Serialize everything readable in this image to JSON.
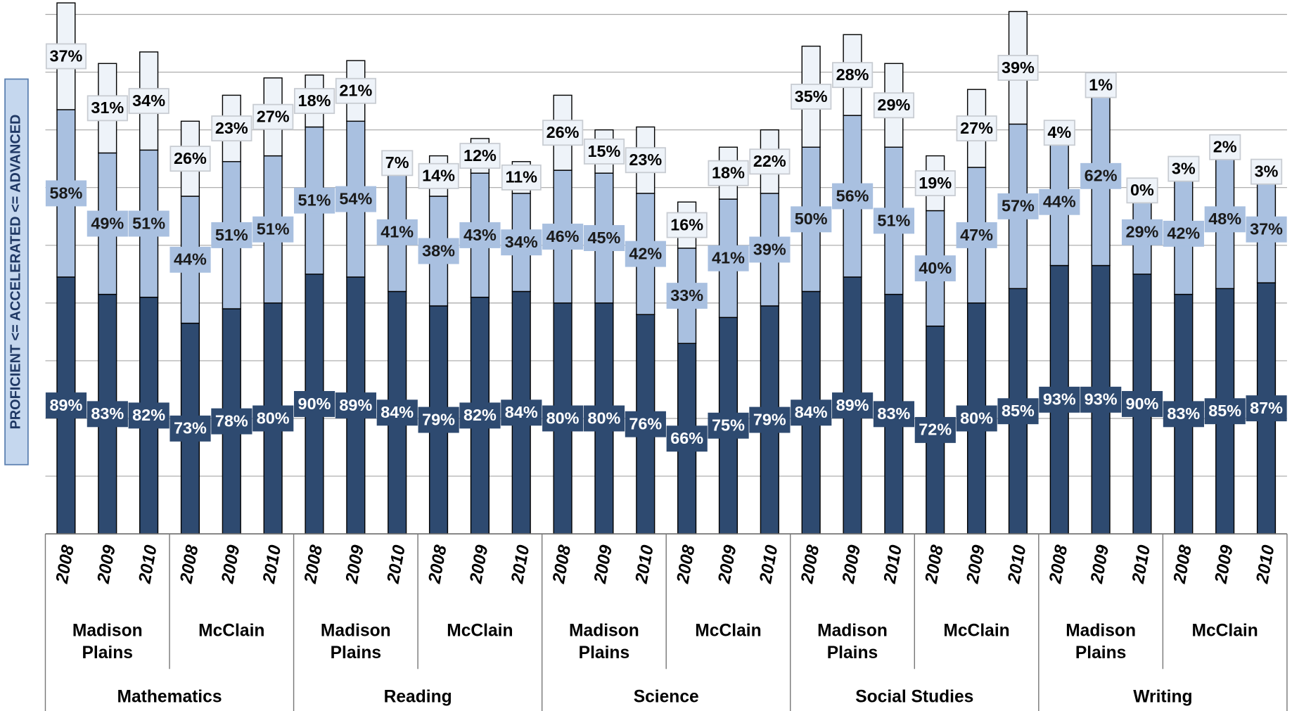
{
  "chart_data": {
    "type": "stacked_bar",
    "y_label": "PROFICIENT <= ACCELERATED <= ADVANCED",
    "categories": [
      "2008",
      "2009",
      "2010",
      "2008",
      "2009",
      "2010",
      "2008",
      "2009",
      "2010",
      "2008",
      "2009",
      "2010",
      "2008",
      "2009",
      "2010",
      "2008",
      "2009",
      "2010",
      "2008",
      "2009",
      "2010",
      "2008",
      "2009",
      "2010",
      "2008",
      "2009",
      "2010",
      "2008",
      "2009",
      "2010"
    ],
    "schools": [
      "Madison Plains",
      "McClain",
      "Madison Plains",
      "McClain",
      "Madison Plains",
      "McClain",
      "Madison Plains",
      "McClain",
      "Madison Plains",
      "McClain"
    ],
    "subjects": [
      "Mathematics",
      "Reading",
      "Science",
      "Social Studies",
      "Writing"
    ],
    "series": [
      {
        "color": "#2e4a70",
        "label_text_color": "#ffffff",
        "values": [
          89,
          83,
          82,
          73,
          78,
          80,
          90,
          89,
          84,
          79,
          82,
          84,
          80,
          80,
          76,
          66,
          75,
          79,
          84,
          89,
          83,
          72,
          80,
          85,
          93,
          93,
          90,
          83,
          85,
          87
        ],
        "value_labels": [
          "89%",
          "83%",
          "82%",
          "73%",
          "78%",
          "80%",
          "90%",
          "89%",
          "84%",
          "79%",
          "82%",
          "84%",
          "80%",
          "80%",
          "76%",
          "66%",
          "75%",
          "79%",
          "84%",
          "89%",
          "83%",
          "72%",
          "80%",
          "85%",
          "93%",
          "93%",
          "90%",
          "83%",
          "85%",
          "87%"
        ]
      },
      {
        "color": "#a9c0e0",
        "label_text_color": "#1a1a1a",
        "values": [
          58,
          49,
          51,
          44,
          51,
          51,
          51,
          54,
          41,
          38,
          43,
          34,
          46,
          45,
          42,
          33,
          41,
          39,
          50,
          56,
          51,
          40,
          47,
          57,
          44,
          62,
          29,
          42,
          48,
          37
        ],
        "value_labels": [
          "58%",
          "49%",
          "51%",
          "44%",
          "51%",
          "51%",
          "51%",
          "54%",
          "41%",
          "38%",
          "43%",
          "34%",
          "46%",
          "45%",
          "42%",
          "33%",
          "41%",
          "39%",
          "50%",
          "56%",
          "51%",
          "40%",
          "47%",
          "57%",
          "44%",
          "62%",
          "29%",
          "42%",
          "48%",
          "37%"
        ]
      },
      {
        "color": "#eef3f9",
        "label_text_color": "#000000",
        "values": [
          37,
          31,
          34,
          26,
          23,
          27,
          18,
          21,
          7,
          14,
          12,
          11,
          26,
          15,
          23,
          16,
          18,
          22,
          35,
          28,
          29,
          19,
          27,
          39,
          4,
          1,
          0,
          3,
          2,
          3
        ],
        "value_labels": [
          "37%",
          "31%",
          "34%",
          "26%",
          "23%",
          "27%",
          "18%",
          "21%",
          "7%",
          "14%",
          "12%",
          "11%",
          "26%",
          "15%",
          "23%",
          "16%",
          "18%",
          "22%",
          "35%",
          "28%",
          "29%",
          "19%",
          "27%",
          "39%",
          "4%",
          "1%",
          "0%",
          "3%",
          "2%",
          "3%"
        ]
      }
    ],
    "ylim": [
      0,
      185
    ],
    "yticks": [
      0,
      20,
      40,
      60,
      80,
      100,
      120,
      140,
      160,
      180
    ],
    "grid": true
  }
}
